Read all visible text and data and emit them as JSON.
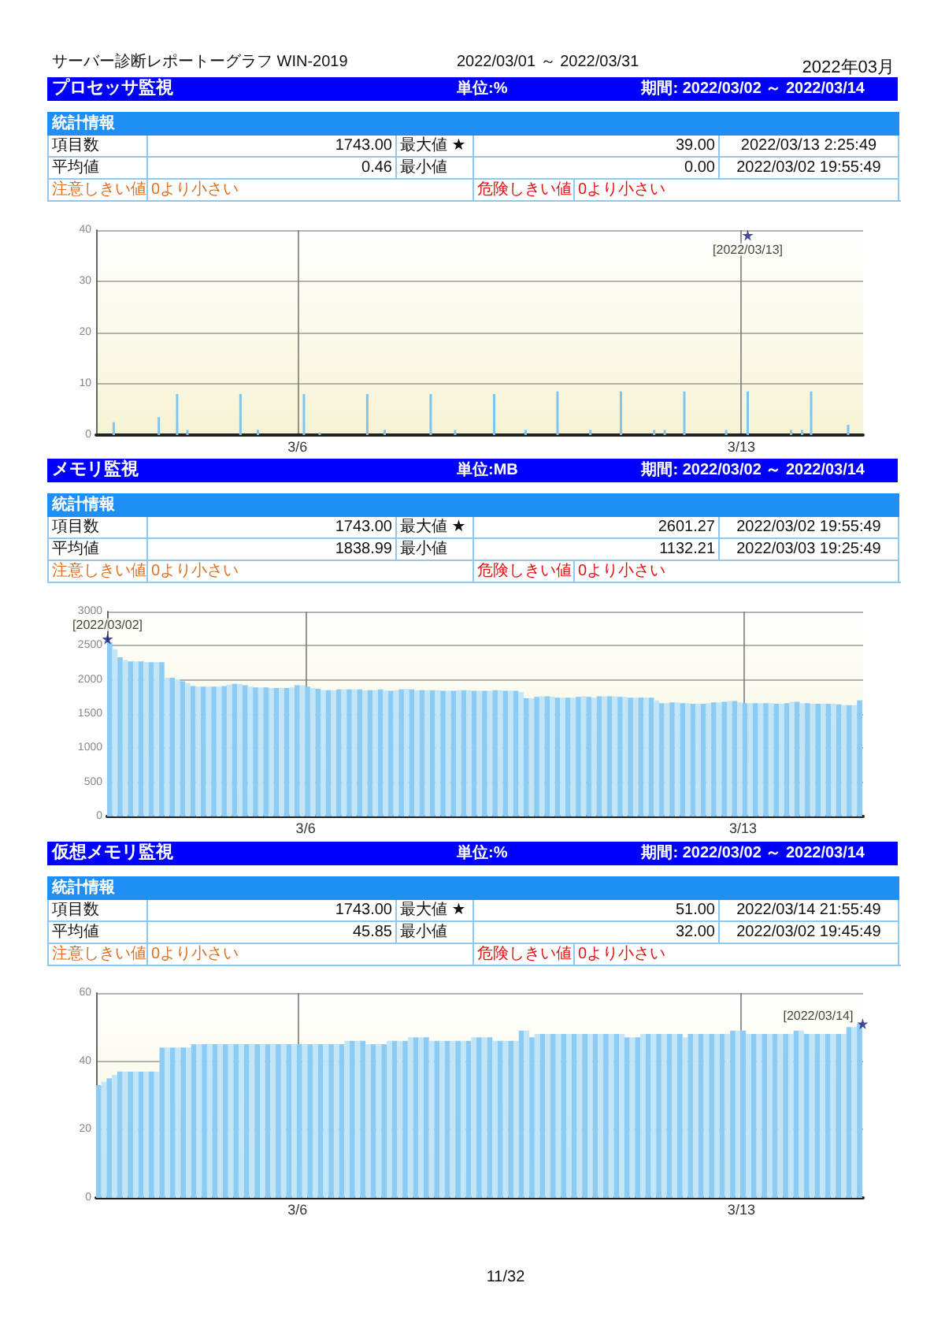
{
  "chart_data": [
    {
      "type": "other",
      "title": "サーバー診断レポートーグラフ WIN-2019",
      "annotations": [
        "2022/03/01 ～ 2022/03/31",
        "2022年03月"
      ]
    },
    {
      "type": "other",
      "title": "プロセッサ監視",
      "annotations": [
        "単位:%",
        "期間: 2022/03/02 ～ 2022/03/14",
        "統計情報",
        "項目数",
        "1743.00",
        "最大値 ★",
        "39.00",
        "2022/03/13 2:25:49",
        "平均値",
        "0.46",
        "最小値",
        "0.00",
        "2022/03/02 19:55:49",
        "注意しきい値",
        "0より小さい",
        "危険しきい値",
        "0より小さい"
      ]
    },
    {
      "type": "bar",
      "series": [
        {
          "type": "bar",
          "color": "#7fc5ee",
          "x": [
            "2022-03-03T02:25",
            "2022-03-03T19:30",
            "2022-03-04T02:25",
            "2022-03-04T06:20",
            "2022-03-05T02:25",
            "2022-03-05T09:00",
            "2022-03-06T02:25",
            "2022-03-06T08:25",
            "2022-03-07T02:25",
            "2022-03-07T09:00",
            "2022-03-08T02:25",
            "2022-03-08T11:40",
            "2022-03-09T02:25",
            "2022-03-09T14:20",
            "2022-03-10T02:25",
            "2022-03-10T14:50",
            "2022-03-11T02:25",
            "2022-03-11T15:00",
            "2022-03-11T19:00",
            "2022-03-12T02:25",
            "2022-03-12T18:15",
            "2022-03-13T02:25",
            "2022-03-13T18:50",
            "2022-03-13T23:00",
            "2022-03-14T02:25",
            "2022-03-14T16:25"
          ],
          "values": [
            2.5,
            3.5,
            8,
            1,
            8,
            1,
            8,
            0.5,
            8,
            1,
            8,
            1,
            8,
            1,
            8.5,
            1,
            8.5,
            1,
            1,
            8.5,
            1,
            8.5,
            1,
            1,
            8.5,
            2
          ]
        },
        {
          "type": "scatter",
          "x": [
            "2022-03-13T02:25"
          ],
          "values": [
            39
          ],
          "color": "#1a1a80",
          "marker": "star"
        }
      ],
      "annotations": [
        {
          "text": "[2022/03/13]",
          "x": "2022-03-13T02:25",
          "y": 39
        }
      ],
      "xlim": [
        "2022-03-02T19:45",
        "2022-03-14T22:05"
      ],
      "xticks": [
        {
          "value": "2022-03-06",
          "label": "3/6"
        },
        {
          "value": "2022-03-13",
          "label": "3/13"
        }
      ],
      "ylim": [
        0,
        40
      ],
      "yticks": [
        0,
        10,
        20,
        30,
        40
      ],
      "grid": true
    },
    {
      "type": "other",
      "title": "メモリ監視",
      "annotations": [
        "単位:MB",
        "期間: 2022/03/02 ～ 2022/03/14",
        "統計情報",
        "項目数",
        "1743.00",
        "最大値 ★",
        "2601.27",
        "2022/03/02 19:55:49",
        "平均値",
        "1838.99",
        "最小値",
        "1132.21",
        "2022/03/03 19:25:49",
        "注意しきい値",
        "0より小さい",
        "危険しきい値",
        "0より小さい"
      ]
    },
    {
      "type": "bar",
      "x": [
        "2022-03-02T20:45",
        "2022-03-02T22:45",
        "2022-03-03T00:45",
        "2022-03-03T02:45",
        "2022-03-03T04:45",
        "2022-03-03T06:45",
        "2022-03-03T08:45",
        "2022-03-03T10:45",
        "2022-03-03T12:45",
        "2022-03-03T14:45",
        "2022-03-03T16:45",
        "2022-03-03T18:45",
        "2022-03-03T20:45",
        "2022-03-03T22:45",
        "2022-03-04T00:45",
        "2022-03-04T02:45",
        "2022-03-04T04:45",
        "2022-03-04T06:45",
        "2022-03-04T08:45",
        "2022-03-04T10:45",
        "2022-03-04T12:45",
        "2022-03-04T14:45",
        "2022-03-04T16:45",
        "2022-03-04T18:45",
        "2022-03-04T20:45",
        "2022-03-04T22:45",
        "2022-03-05T00:45",
        "2022-03-05T02:45",
        "2022-03-05T04:45",
        "2022-03-05T06:45",
        "2022-03-05T08:45",
        "2022-03-05T10:45",
        "2022-03-05T12:45",
        "2022-03-05T14:45",
        "2022-03-05T16:45",
        "2022-03-05T18:45",
        "2022-03-05T20:45",
        "2022-03-05T22:45",
        "2022-03-06T00:45",
        "2022-03-06T02:45",
        "2022-03-06T04:45",
        "2022-03-06T06:45",
        "2022-03-06T08:45",
        "2022-03-06T10:45",
        "2022-03-06T12:45",
        "2022-03-06T14:45",
        "2022-03-06T16:45",
        "2022-03-06T18:45",
        "2022-03-06T20:45",
        "2022-03-06T22:45",
        "2022-03-07T00:45",
        "2022-03-07T02:45",
        "2022-03-07T04:45",
        "2022-03-07T06:45",
        "2022-03-07T08:45",
        "2022-03-07T10:45",
        "2022-03-07T12:45",
        "2022-03-07T14:45",
        "2022-03-07T16:45",
        "2022-03-07T18:45",
        "2022-03-07T20:45",
        "2022-03-07T22:45",
        "2022-03-08T00:45",
        "2022-03-08T02:45",
        "2022-03-08T04:45",
        "2022-03-08T06:45",
        "2022-03-08T08:45",
        "2022-03-08T10:45",
        "2022-03-08T12:45",
        "2022-03-08T14:45",
        "2022-03-08T16:45",
        "2022-03-08T18:45",
        "2022-03-08T20:45",
        "2022-03-08T22:45",
        "2022-03-09T00:45",
        "2022-03-09T02:45",
        "2022-03-09T04:45",
        "2022-03-09T06:45",
        "2022-03-09T08:45",
        "2022-03-09T10:45",
        "2022-03-09T12:45",
        "2022-03-09T14:45",
        "2022-03-09T16:45",
        "2022-03-09T18:45",
        "2022-03-09T20:45",
        "2022-03-09T22:45",
        "2022-03-10T00:45",
        "2022-03-10T02:45",
        "2022-03-10T04:45",
        "2022-03-10T06:45",
        "2022-03-10T08:45",
        "2022-03-10T10:45",
        "2022-03-10T12:45",
        "2022-03-10T14:45",
        "2022-03-10T16:45",
        "2022-03-10T18:45",
        "2022-03-10T20:45",
        "2022-03-10T22:45",
        "2022-03-11T00:45",
        "2022-03-11T02:45",
        "2022-03-11T04:45",
        "2022-03-11T06:45",
        "2022-03-11T08:45",
        "2022-03-11T10:45",
        "2022-03-11T12:45",
        "2022-03-11T14:45",
        "2022-03-11T16:45",
        "2022-03-11T18:45",
        "2022-03-11T20:45",
        "2022-03-11T22:45",
        "2022-03-12T00:45",
        "2022-03-12T02:45",
        "2022-03-12T04:45",
        "2022-03-12T06:45",
        "2022-03-12T08:45",
        "2022-03-12T10:45",
        "2022-03-12T12:45",
        "2022-03-12T14:45",
        "2022-03-12T16:45",
        "2022-03-12T18:45",
        "2022-03-12T20:45",
        "2022-03-12T22:45",
        "2022-03-13T00:45",
        "2022-03-13T02:45",
        "2022-03-13T04:45",
        "2022-03-13T06:45",
        "2022-03-13T08:45",
        "2022-03-13T10:45",
        "2022-03-13T12:45",
        "2022-03-13T14:45",
        "2022-03-13T16:45",
        "2022-03-13T18:45",
        "2022-03-13T20:45",
        "2022-03-13T22:45",
        "2022-03-14T00:45",
        "2022-03-14T02:45",
        "2022-03-14T04:45",
        "2022-03-14T06:45",
        "2022-03-14T08:45",
        "2022-03-14T10:45",
        "2022-03-14T12:45",
        "2022-03-14T14:45",
        "2022-03-14T16:45",
        "2022-03-14T18:45",
        "2022-03-14T20:45"
      ],
      "series": [
        {
          "type": "bar",
          "values": [
            2550,
            2450,
            2330,
            2290,
            2270,
            2270,
            2270,
            2260,
            2260,
            2260,
            2260,
            2030,
            2030,
            2010,
            1980,
            1950,
            1910,
            1900,
            1900,
            1900,
            1900,
            1900,
            1910,
            1930,
            1940,
            1940,
            1920,
            1900,
            1890,
            1890,
            1890,
            1880,
            1880,
            1880,
            1880,
            1890,
            1920,
            1920,
            1900,
            1880,
            1870,
            1850,
            1850,
            1850,
            1860,
            1860,
            1860,
            1860,
            1860,
            1850,
            1850,
            1850,
            1860,
            1850,
            1840,
            1850,
            1860,
            1870,
            1860,
            1850,
            1850,
            1850,
            1850,
            1850,
            1840,
            1840,
            1840,
            1850,
            1850,
            1850,
            1840,
            1840,
            1840,
            1840,
            1850,
            1850,
            1840,
            1840,
            1840,
            1820,
            1730,
            1730,
            1750,
            1760,
            1760,
            1750,
            1740,
            1740,
            1740,
            1740,
            1750,
            1760,
            1750,
            1740,
            1760,
            1760,
            1760,
            1760,
            1750,
            1750,
            1740,
            1740,
            1740,
            1740,
            1740,
            1700,
            1660,
            1660,
            1670,
            1670,
            1660,
            1660,
            1650,
            1650,
            1650,
            1660,
            1670,
            1670,
            1680,
            1690,
            1690,
            1670,
            1660,
            1660,
            1660,
            1660,
            1660,
            1660,
            1650,
            1650,
            1660,
            1680,
            1680,
            1660,
            1660,
            1650,
            1650,
            1650,
            1650,
            1650,
            1640,
            1630,
            1630,
            1630,
            1700
          ],
          "colors": [
            "#8ccbf3",
            "#c2e5f7",
            "#8ccbf3",
            "#c2e5f7",
            "#8ccbf3",
            "#c2e5f7",
            "#8ccbf3",
            "#c2e5f7",
            "#8ccbf3",
            "#c2e5f7",
            "#8ccbf3",
            "#c2e5f7",
            "#8ccbf3",
            "#c2e5f7",
            "#8ccbf3",
            "#c2e5f7",
            "#8ccbf3",
            "#c2e5f7",
            "#8ccbf3",
            "#c2e5f7",
            "#8ccbf3",
            "#c2e5f7",
            "#8ccbf3",
            "#c2e5f7",
            "#8ccbf3",
            "#c2e5f7",
            "#8ccbf3",
            "#c2e5f7",
            "#8ccbf3",
            "#c2e5f7",
            "#8ccbf3",
            "#c2e5f7",
            "#8ccbf3",
            "#c2e5f7",
            "#8ccbf3",
            "#c2e5f7",
            "#8ccbf3",
            "#c2e5f7",
            "#8ccbf3",
            "#c2e5f7",
            "#8ccbf3",
            "#c2e5f7",
            "#8ccbf3",
            "#c2e5f7",
            "#8ccbf3",
            "#c2e5f7",
            "#8ccbf3",
            "#c2e5f7",
            "#8ccbf3",
            "#c2e5f7",
            "#8ccbf3",
            "#c2e5f7",
            "#8ccbf3",
            "#c2e5f7",
            "#8ccbf3",
            "#c2e5f7",
            "#8ccbf3",
            "#c2e5f7",
            "#8ccbf3",
            "#c2e5f7",
            "#8ccbf3",
            "#c2e5f7",
            "#8ccbf3",
            "#c2e5f7",
            "#8ccbf3",
            "#c2e5f7",
            "#8ccbf3",
            "#c2e5f7",
            "#8ccbf3",
            "#c2e5f7",
            "#8ccbf3",
            "#c2e5f7",
            "#8ccbf3",
            "#c2e5f7",
            "#8ccbf3",
            "#c2e5f7",
            "#8ccbf3",
            "#c2e5f7",
            "#8ccbf3",
            "#c2e5f7",
            "#8ccbf3",
            "#c2e5f7",
            "#8ccbf3",
            "#c2e5f7",
            "#8ccbf3",
            "#c2e5f7",
            "#8ccbf3",
            "#c2e5f7",
            "#8ccbf3",
            "#c2e5f7",
            "#8ccbf3",
            "#c2e5f7",
            "#8ccbf3",
            "#c2e5f7",
            "#8ccbf3",
            "#c2e5f7",
            "#8ccbf3",
            "#c2e5f7",
            "#8ccbf3",
            "#c2e5f7",
            "#8ccbf3",
            "#c2e5f7",
            "#8ccbf3",
            "#c2e5f7",
            "#8ccbf3",
            "#c2e5f7",
            "#8ccbf3",
            "#c2e5f7",
            "#8ccbf3",
            "#c2e5f7",
            "#8ccbf3",
            "#c2e5f7",
            "#8ccbf3",
            "#c2e5f7",
            "#8ccbf3",
            "#c2e5f7",
            "#8ccbf3",
            "#c2e5f7",
            "#8ccbf3",
            "#c2e5f7",
            "#8ccbf3",
            "#c2e5f7",
            "#8ccbf3",
            "#c2e5f7",
            "#8ccbf3",
            "#c2e5f7",
            "#8ccbf3",
            "#c2e5f7",
            "#8ccbf3",
            "#c2e5f7",
            "#8ccbf3",
            "#c2e5f7",
            "#8ccbf3",
            "#c2e5f7",
            "#8ccbf3",
            "#c2e5f7",
            "#8ccbf3",
            "#c2e5f7",
            "#8ccbf3",
            "#c2e5f7",
            "#8ccbf3",
            "#c2e5f7",
            "#8ccbf3",
            "#c2e5f7",
            "#8ccbf3"
          ]
        },
        {
          "type": "scatter",
          "x": [
            "2022-03-02T19:55"
          ],
          "values": [
            2600
          ],
          "color": "#1a1a80",
          "marker": "star"
        }
      ],
      "annotations": [
        {
          "text": "[2022/03/02]",
          "x": "2022-03-02T19:55",
          "y": 2600
        }
      ],
      "xlim": [
        "2022-03-02T19:45",
        "2022-03-14T22:05"
      ],
      "xticks": [
        {
          "value": "2022-03-06",
          "label": "3/6"
        },
        {
          "value": "2022-03-13",
          "label": "3/13"
        }
      ],
      "ylim": [
        0,
        3000
      ],
      "yticks": [
        0,
        500,
        1000,
        1500,
        2000,
        2500,
        3000
      ],
      "grid": true
    },
    {
      "type": "other",
      "title": "仮想メモリ監視",
      "annotations": [
        "単位:%",
        "期間: 2022/03/02 ～ 2022/03/14",
        "統計情報",
        "項目数",
        "1743.00",
        "最大値 ★",
        "51.00",
        "2022/03/14 21:55:49",
        "平均値",
        "45.85",
        "最小値",
        "32.00",
        "2022/03/02 19:45:49",
        "注意しきい値",
        "0より小さい",
        "危険しきい値",
        "0より小さい"
      ]
    },
    {
      "type": "bar",
      "x": [
        "2022-03-02T20:45",
        "2022-03-02T22:45",
        "2022-03-03T00:45",
        "2022-03-03T02:45",
        "2022-03-03T04:45",
        "2022-03-03T06:45",
        "2022-03-03T08:45",
        "2022-03-03T10:45",
        "2022-03-03T12:45",
        "2022-03-03T14:45",
        "2022-03-03T16:45",
        "2022-03-03T18:45",
        "2022-03-03T20:45",
        "2022-03-03T22:45",
        "2022-03-04T00:45",
        "2022-03-04T02:45",
        "2022-03-04T04:45",
        "2022-03-04T06:45",
        "2022-03-04T08:45",
        "2022-03-04T10:45",
        "2022-03-04T12:45",
        "2022-03-04T14:45",
        "2022-03-04T16:45",
        "2022-03-04T18:45",
        "2022-03-04T20:45",
        "2022-03-04T22:45",
        "2022-03-05T00:45",
        "2022-03-05T02:45",
        "2022-03-05T04:45",
        "2022-03-05T06:45",
        "2022-03-05T08:45",
        "2022-03-05T10:45",
        "2022-03-05T12:45",
        "2022-03-05T14:45",
        "2022-03-05T16:45",
        "2022-03-05T18:45",
        "2022-03-05T20:45",
        "2022-03-05T22:45",
        "2022-03-06T00:45",
        "2022-03-06T02:45",
        "2022-03-06T04:45",
        "2022-03-06T06:45",
        "2022-03-06T08:45",
        "2022-03-06T10:45",
        "2022-03-06T12:45",
        "2022-03-06T14:45",
        "2022-03-06T16:45",
        "2022-03-06T18:45",
        "2022-03-06T20:45",
        "2022-03-06T22:45",
        "2022-03-07T00:45",
        "2022-03-07T02:45",
        "2022-03-07T04:45",
        "2022-03-07T06:45",
        "2022-03-07T08:45",
        "2022-03-07T10:45",
        "2022-03-07T12:45",
        "2022-03-07T14:45",
        "2022-03-07T16:45",
        "2022-03-07T18:45",
        "2022-03-07T20:45",
        "2022-03-07T22:45",
        "2022-03-08T00:45",
        "2022-03-08T02:45",
        "2022-03-08T04:45",
        "2022-03-08T06:45",
        "2022-03-08T08:45",
        "2022-03-08T10:45",
        "2022-03-08T12:45",
        "2022-03-08T14:45",
        "2022-03-08T16:45",
        "2022-03-08T18:45",
        "2022-03-08T20:45",
        "2022-03-08T22:45",
        "2022-03-09T00:45",
        "2022-03-09T02:45",
        "2022-03-09T04:45",
        "2022-03-09T06:45",
        "2022-03-09T08:45",
        "2022-03-09T10:45",
        "2022-03-09T12:45",
        "2022-03-09T14:45",
        "2022-03-09T16:45",
        "2022-03-09T18:45",
        "2022-03-09T20:45",
        "2022-03-09T22:45",
        "2022-03-10T00:45",
        "2022-03-10T02:45",
        "2022-03-10T04:45",
        "2022-03-10T06:45",
        "2022-03-10T08:45",
        "2022-03-10T10:45",
        "2022-03-10T12:45",
        "2022-03-10T14:45",
        "2022-03-10T16:45",
        "2022-03-10T18:45",
        "2022-03-10T20:45",
        "2022-03-10T22:45",
        "2022-03-11T00:45",
        "2022-03-11T02:45",
        "2022-03-11T04:45",
        "2022-03-11T06:45",
        "2022-03-11T08:45",
        "2022-03-11T10:45",
        "2022-03-11T12:45",
        "2022-03-11T14:45",
        "2022-03-11T16:45",
        "2022-03-11T18:45",
        "2022-03-11T20:45",
        "2022-03-11T22:45",
        "2022-03-12T00:45",
        "2022-03-12T02:45",
        "2022-03-12T04:45",
        "2022-03-12T06:45",
        "2022-03-12T08:45",
        "2022-03-12T10:45",
        "2022-03-12T12:45",
        "2022-03-12T14:45",
        "2022-03-12T16:45",
        "2022-03-12T18:45",
        "2022-03-12T20:45",
        "2022-03-12T22:45",
        "2022-03-13T00:45",
        "2022-03-13T02:45",
        "2022-03-13T04:45",
        "2022-03-13T06:45",
        "2022-03-13T08:45",
        "2022-03-13T10:45",
        "2022-03-13T12:45",
        "2022-03-13T14:45",
        "2022-03-13T16:45",
        "2022-03-13T18:45",
        "2022-03-13T20:45",
        "2022-03-13T22:45",
        "2022-03-14T00:45",
        "2022-03-14T02:45",
        "2022-03-14T04:45",
        "2022-03-14T06:45",
        "2022-03-14T08:45",
        "2022-03-14T10:45",
        "2022-03-14T12:45",
        "2022-03-14T14:45",
        "2022-03-14T16:45",
        "2022-03-14T18:45",
        "2022-03-14T20:45"
      ],
      "series": [
        {
          "type": "bar",
          "values": [
            33,
            34,
            35,
            36,
            37,
            37,
            37,
            37,
            37,
            37,
            37,
            37,
            44,
            44,
            44,
            44,
            44,
            44,
            45,
            45,
            45,
            45,
            45,
            45,
            45,
            45,
            45,
            45,
            45,
            45,
            45,
            45,
            45,
            45,
            45,
            45,
            45,
            45,
            45,
            45,
            45,
            45,
            45,
            45,
            45,
            45,
            45,
            46,
            46,
            46,
            46,
            45,
            45,
            45,
            45,
            46,
            46,
            46,
            46,
            47,
            47,
            47,
            47,
            46,
            46,
            46,
            46,
            46,
            46,
            46,
            46,
            47,
            47,
            47,
            47,
            46,
            46,
            46,
            46,
            46,
            49,
            49,
            47,
            48,
            48,
            48,
            48,
            48,
            48,
            48,
            48,
            48,
            48,
            48,
            48,
            48,
            48,
            48,
            48,
            48,
            47,
            47,
            47,
            48,
            48,
            48,
            48,
            48,
            48,
            48,
            48,
            47,
            48,
            48,
            48,
            48,
            48,
            48,
            48,
            48,
            49,
            49,
            49,
            48,
            48,
            48,
            48,
            48,
            48,
            48,
            48,
            48,
            49,
            49,
            48,
            48,
            48,
            48,
            48,
            48,
            48,
            48,
            50,
            50,
            51
          ],
          "colors": [
            "#8ccbf3",
            "#c2e5f7",
            "#8ccbf3",
            "#c2e5f7",
            "#8ccbf3",
            "#c2e5f7",
            "#8ccbf3",
            "#c2e5f7",
            "#8ccbf3",
            "#c2e5f7",
            "#8ccbf3",
            "#c2e5f7",
            "#8ccbf3",
            "#c2e5f7",
            "#8ccbf3",
            "#c2e5f7",
            "#8ccbf3",
            "#c2e5f7",
            "#8ccbf3",
            "#c2e5f7",
            "#8ccbf3",
            "#c2e5f7",
            "#8ccbf3",
            "#c2e5f7",
            "#8ccbf3",
            "#c2e5f7",
            "#8ccbf3",
            "#c2e5f7",
            "#8ccbf3",
            "#c2e5f7",
            "#8ccbf3",
            "#c2e5f7",
            "#8ccbf3",
            "#c2e5f7",
            "#8ccbf3",
            "#c2e5f7",
            "#8ccbf3",
            "#c2e5f7",
            "#8ccbf3",
            "#c2e5f7",
            "#8ccbf3",
            "#c2e5f7",
            "#8ccbf3",
            "#c2e5f7",
            "#8ccbf3",
            "#c2e5f7",
            "#8ccbf3",
            "#c2e5f7",
            "#8ccbf3",
            "#c2e5f7",
            "#8ccbf3",
            "#c2e5f7",
            "#8ccbf3",
            "#c2e5f7",
            "#8ccbf3",
            "#c2e5f7",
            "#8ccbf3",
            "#c2e5f7",
            "#8ccbf3",
            "#c2e5f7",
            "#8ccbf3",
            "#c2e5f7",
            "#8ccbf3",
            "#c2e5f7",
            "#8ccbf3",
            "#c2e5f7",
            "#8ccbf3",
            "#c2e5f7",
            "#8ccbf3",
            "#c2e5f7",
            "#8ccbf3",
            "#c2e5f7",
            "#8ccbf3",
            "#c2e5f7",
            "#8ccbf3",
            "#c2e5f7",
            "#8ccbf3",
            "#c2e5f7",
            "#8ccbf3",
            "#c2e5f7",
            "#8ccbf3",
            "#c2e5f7",
            "#8ccbf3",
            "#c2e5f7",
            "#8ccbf3",
            "#c2e5f7",
            "#8ccbf3",
            "#c2e5f7",
            "#8ccbf3",
            "#c2e5f7",
            "#8ccbf3",
            "#c2e5f7",
            "#8ccbf3",
            "#c2e5f7",
            "#8ccbf3",
            "#c2e5f7",
            "#8ccbf3",
            "#c2e5f7",
            "#8ccbf3",
            "#c2e5f7",
            "#8ccbf3",
            "#c2e5f7",
            "#8ccbf3",
            "#c2e5f7",
            "#8ccbf3",
            "#c2e5f7",
            "#8ccbf3",
            "#c2e5f7",
            "#8ccbf3",
            "#c2e5f7",
            "#8ccbf3",
            "#c2e5f7",
            "#8ccbf3",
            "#c2e5f7",
            "#8ccbf3",
            "#c2e5f7",
            "#8ccbf3",
            "#c2e5f7",
            "#8ccbf3",
            "#c2e5f7",
            "#8ccbf3",
            "#c2e5f7",
            "#8ccbf3",
            "#c2e5f7",
            "#8ccbf3",
            "#c2e5f7",
            "#8ccbf3",
            "#c2e5f7",
            "#8ccbf3",
            "#c2e5f7",
            "#8ccbf3",
            "#c2e5f7",
            "#8ccbf3",
            "#c2e5f7",
            "#8ccbf3",
            "#c2e5f7",
            "#8ccbf3",
            "#c2e5f7",
            "#8ccbf3",
            "#c2e5f7",
            "#8ccbf3",
            "#c2e5f7",
            "#8ccbf3",
            "#c2e5f7",
            "#8ccbf3"
          ]
        },
        {
          "type": "scatter",
          "x": [
            "2022-03-14T21:55"
          ],
          "values": [
            51
          ],
          "color": "#1a1a80",
          "marker": "star"
        }
      ],
      "annotations": [
        {
          "text": "[2022/03/14]",
          "x": "2022-03-14T21:55",
          "y": 51
        }
      ],
      "xlim": [
        "2022-03-02T19:45",
        "2022-03-14T22:05"
      ],
      "xticks": [
        {
          "value": "2022-03-06",
          "label": "3/6"
        },
        {
          "value": "2022-03-13",
          "label": "3/13"
        }
      ],
      "ylim": [
        0,
        60
      ],
      "yticks": [
        0,
        20,
        40,
        60
      ],
      "grid": true
    },
    {
      "type": "other",
      "annotations": [
        "11/32"
      ]
    }
  ]
}
